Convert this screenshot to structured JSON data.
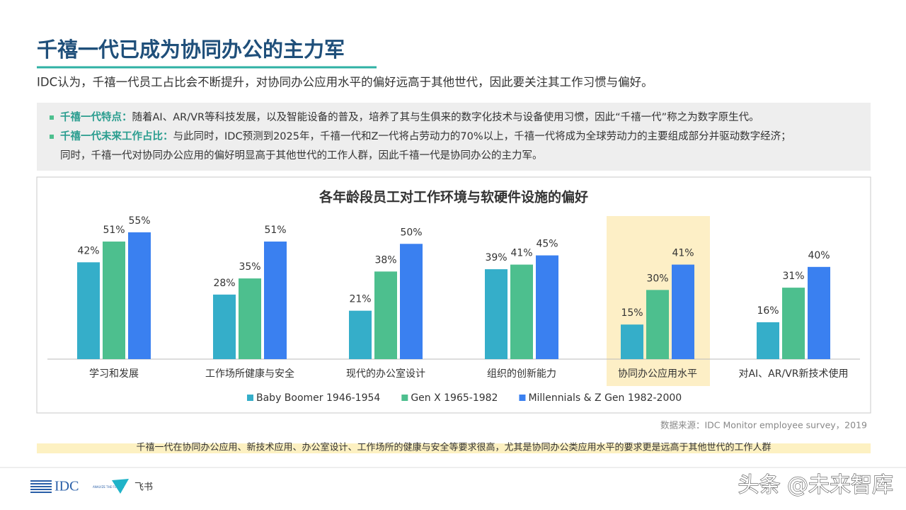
{
  "header": {
    "title": "千禧一代已成为协同办公的主力军",
    "subtitle": "IDC认为，千禧一代员工占比会不断提升，对协同办公应用水平的偏好远高于其他世代，因此要关注其工作习惯与偏好。"
  },
  "bullets": [
    {
      "label": "千禧一代特点：",
      "lines": [
        "随着AI、AR/VR等科技发展，以及智能设备的普及，培养了其与生俱来的数字化技术与设备使用习惯，因此“千禧一代”称之为数字原生代。"
      ]
    },
    {
      "label": "千禧一代未来工作占比：",
      "lines": [
        "与此同时，IDC预测到2025年，千禧一代和Z一代将占劳动力的70%以上，千禧一代将成为全球劳动力的主要组成部分并驱动数字经济；",
        "同时，千禧一代对协同办公应用的偏好明显高于其他世代的工作人群，因此千禧一代是协同办公的主力军。"
      ]
    }
  ],
  "chart_data": {
    "type": "bar",
    "title": "各年龄段员工对工作环境与软硬件设施的偏好",
    "categories": [
      "学习和发展",
      "工作场所健康与安全",
      "现代的办公室设计",
      "组织的创新能力",
      "协同办公应用水平",
      "对AI、AR/VR新技术使用"
    ],
    "highlight_category": 4,
    "series": [
      {
        "name": "Baby Boomer 1946-1954",
        "color": "#35aec9",
        "values": [
          42,
          28,
          21,
          39,
          15,
          16
        ],
        "value_labels": [
          "42%",
          "28%",
          "21%",
          "39%",
          "15%",
          "16%"
        ]
      },
      {
        "name": "Gen X 1965-1982",
        "color": "#4dbf8e",
        "values": [
          51,
          35,
          38,
          41,
          30,
          31
        ],
        "value_labels": [
          "51%",
          "35%",
          "38%",
          "41%",
          "30%",
          "31%"
        ]
      },
      {
        "name": "Millennials & Z Gen 1982-2000",
        "color": "#3a80f0",
        "values": [
          55,
          51,
          50,
          45,
          41,
          40
        ],
        "value_labels": [
          "55%",
          "51%",
          "50%",
          "45%",
          "41%",
          "40%"
        ]
      }
    ]
  },
  "source": "数据来源：IDC Monitor employee survey，2019",
  "summary": "千禧一代在协同办公应用、新技术应用、办公室设计、工作场所的健康与安全等要求很高，尤其是协同办公类应用水平的要求更是远高于其他世代的工作人群",
  "footer": {
    "logo": "IDC",
    "tagline": "ANALYZE THE FUTURE",
    "brand": "飞书",
    "watermark": "头条 @未来智库"
  }
}
